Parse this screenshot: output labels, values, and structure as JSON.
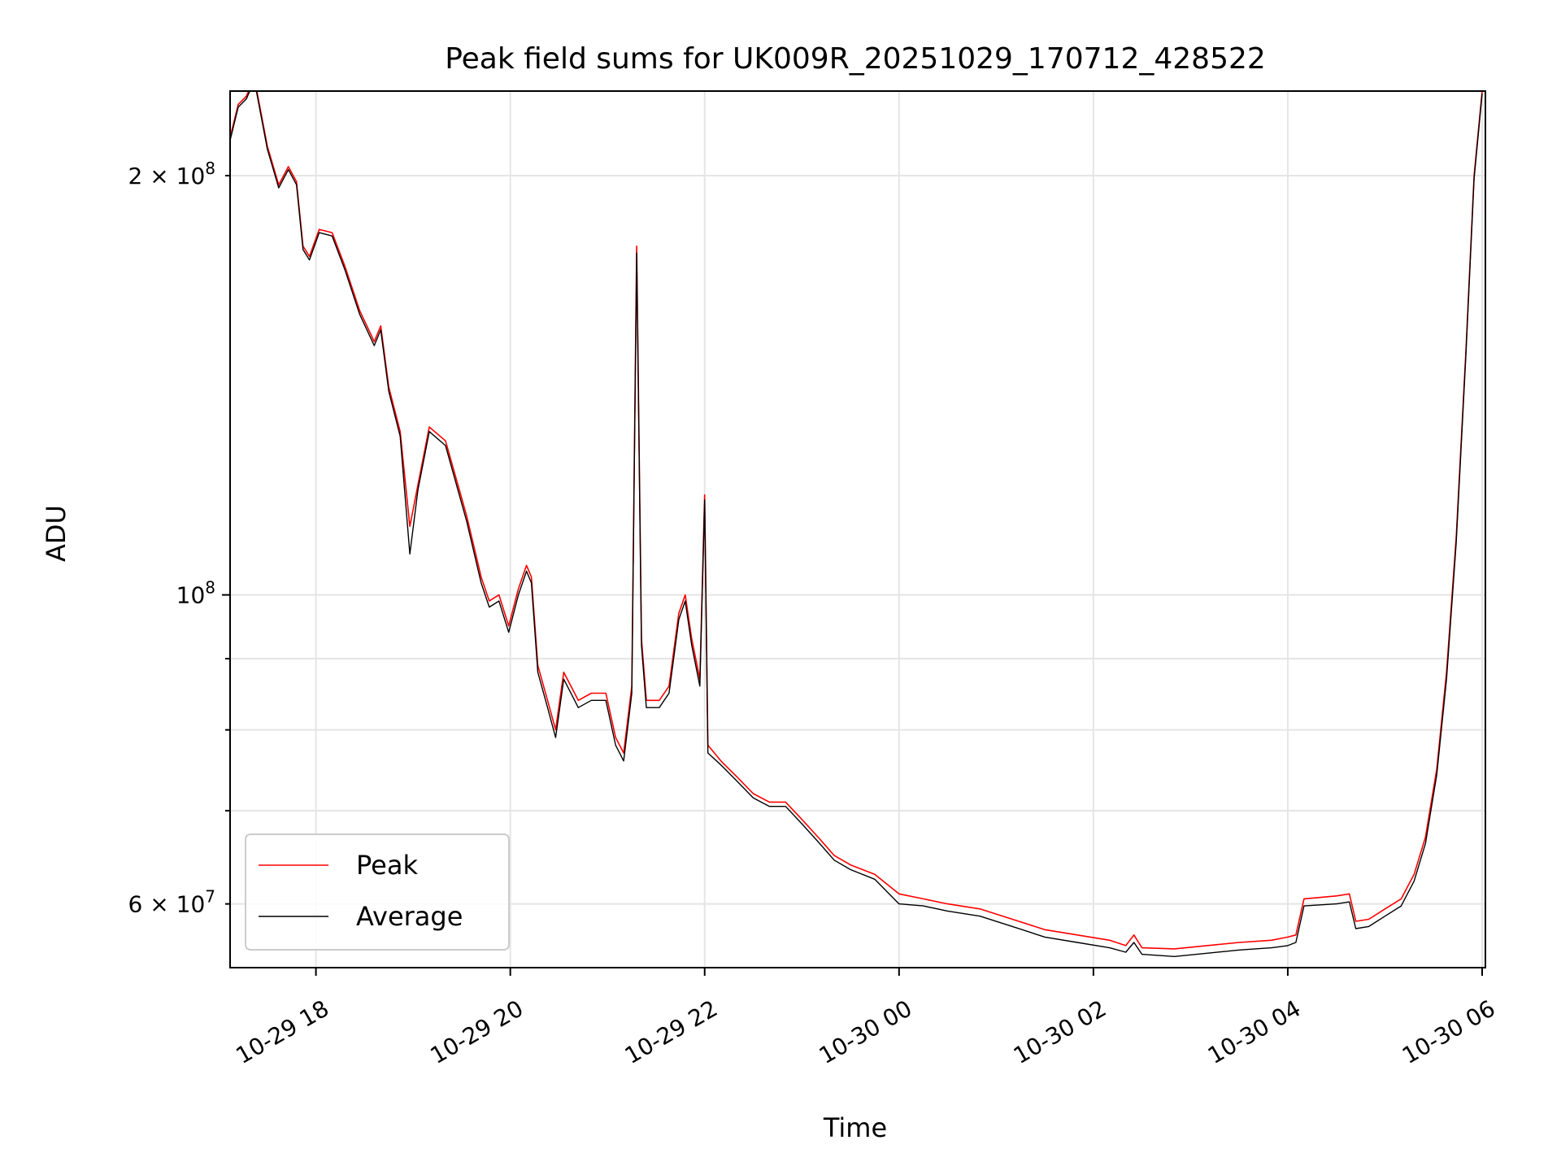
{
  "chart_data": {
    "type": "line",
    "title": "Peak field sums for UK009R_20251029_170712_428522",
    "xlabel": "Time",
    "ylabel": "ADU",
    "y_scale": "log",
    "grid": true,
    "legend_position": "lower-left",
    "xlim": [
      "2025-10-29T17:07",
      "2025-10-30T06:02"
    ],
    "ylim": [
      54000000,
      230000000
    ],
    "x_ticks": [
      {
        "value": "2025-10-29T18:00",
        "label": "10-29 18"
      },
      {
        "value": "2025-10-29T20:00",
        "label": "10-29 20"
      },
      {
        "value": "2025-10-29T22:00",
        "label": "10-29 22"
      },
      {
        "value": "2025-10-30T00:00",
        "label": "10-30 00"
      },
      {
        "value": "2025-10-30T02:00",
        "label": "10-30 02"
      },
      {
        "value": "2025-10-30T04:00",
        "label": "10-30 04"
      },
      {
        "value": "2025-10-30T06:00",
        "label": "10-30 06"
      }
    ],
    "y_major_ticks": [
      {
        "value": 100000000,
        "label": "10",
        "exp": "8"
      }
    ],
    "y_minor_ticks": [
      {
        "value": 60000000,
        "label": "6 × 10",
        "exp": "7"
      },
      {
        "value": 70000000,
        "label": "",
        "exp": ""
      },
      {
        "value": 80000000,
        "label": "",
        "exp": ""
      },
      {
        "value": 90000000,
        "label": "",
        "exp": ""
      },
      {
        "value": 200000000,
        "label": "2 × 10",
        "exp": "8"
      }
    ],
    "series": [
      {
        "name": "Peak",
        "color": "#ff0000",
        "points": [
          [
            "2025-10-29T17:07",
            213000000
          ],
          [
            "2025-10-29T17:12",
            225000000
          ],
          [
            "2025-10-29T17:17",
            228000000
          ],
          [
            "2025-10-29T17:22",
            235000000
          ],
          [
            "2025-10-29T17:30",
            210000000
          ],
          [
            "2025-10-29T17:37",
            197000000
          ],
          [
            "2025-10-29T17:43",
            203000000
          ],
          [
            "2025-10-29T17:48",
            198000000
          ],
          [
            "2025-10-29T17:52",
            178000000
          ],
          [
            "2025-10-29T17:56",
            175000000
          ],
          [
            "2025-10-29T18:02",
            183000000
          ],
          [
            "2025-10-29T18:10",
            182000000
          ],
          [
            "2025-10-29T18:18",
            172000000
          ],
          [
            "2025-10-29T18:27",
            160000000
          ],
          [
            "2025-10-29T18:36",
            152000000
          ],
          [
            "2025-10-29T18:40",
            156000000
          ],
          [
            "2025-10-29T18:45",
            141000000
          ],
          [
            "2025-10-29T18:52",
            131000000
          ],
          [
            "2025-10-29T18:58",
            112000000
          ],
          [
            "2025-10-29T19:03",
            120000000
          ],
          [
            "2025-10-29T19:10",
            132000000
          ],
          [
            "2025-10-29T19:20",
            129000000
          ],
          [
            "2025-10-29T19:33",
            114000000
          ],
          [
            "2025-10-29T19:42",
            103000000
          ],
          [
            "2025-10-29T19:47",
            99000000
          ],
          [
            "2025-10-29T19:53",
            100000000
          ],
          [
            "2025-10-29T19:59",
            95000000
          ],
          [
            "2025-10-29T20:05",
            101000000
          ],
          [
            "2025-10-29T20:10",
            105000000
          ],
          [
            "2025-10-29T20:13",
            103000000
          ],
          [
            "2025-10-29T20:17",
            89000000
          ],
          [
            "2025-10-29T20:23",
            84000000
          ],
          [
            "2025-10-29T20:28",
            80000000
          ],
          [
            "2025-10-29T20:33",
            88000000
          ],
          [
            "2025-10-29T20:42",
            84000000
          ],
          [
            "2025-10-29T20:50",
            85000000
          ],
          [
            "2025-10-29T20:59",
            85000000
          ],
          [
            "2025-10-29T21:05",
            79000000
          ],
          [
            "2025-10-29T21:10",
            77000000
          ],
          [
            "2025-10-29T21:15",
            86000000
          ],
          [
            "2025-10-29T21:18",
            178000000
          ],
          [
            "2025-10-29T21:21",
            93000000
          ],
          [
            "2025-10-29T21:24",
            84000000
          ],
          [
            "2025-10-29T21:32",
            84000000
          ],
          [
            "2025-10-29T21:38",
            86000000
          ],
          [
            "2025-10-29T21:44",
            97000000
          ],
          [
            "2025-10-29T21:48",
            100000000
          ],
          [
            "2025-10-29T21:52",
            93000000
          ],
          [
            "2025-10-29T21:57",
            87000000
          ],
          [
            "2025-10-29T22:00",
            118000000
          ],
          [
            "2025-10-29T22:02",
            78000000
          ],
          [
            "2025-10-29T22:10",
            76000000
          ],
          [
            "2025-10-29T22:20",
            74000000
          ],
          [
            "2025-10-29T22:30",
            72000000
          ],
          [
            "2025-10-29T22:40",
            71000000
          ],
          [
            "2025-10-29T22:50",
            71000000
          ],
          [
            "2025-10-29T23:00",
            69000000
          ],
          [
            "2025-10-29T23:10",
            67000000
          ],
          [
            "2025-10-29T23:20",
            65000000
          ],
          [
            "2025-10-29T23:30",
            64000000
          ],
          [
            "2025-10-29T23:45",
            63000000
          ],
          [
            "2025-10-30T00:00",
            61000000
          ],
          [
            "2025-10-30T00:15",
            60500000
          ],
          [
            "2025-10-30T00:30",
            60000000
          ],
          [
            "2025-10-30T00:50",
            59500000
          ],
          [
            "2025-10-30T01:10",
            58500000
          ],
          [
            "2025-10-30T01:30",
            57500000
          ],
          [
            "2025-10-30T01:50",
            57000000
          ],
          [
            "2025-10-30T02:10",
            56500000
          ],
          [
            "2025-10-30T02:20",
            56000000
          ],
          [
            "2025-10-30T02:25",
            57000000
          ],
          [
            "2025-10-30T02:30",
            55800000
          ],
          [
            "2025-10-30T02:50",
            55700000
          ],
          [
            "2025-10-30T03:10",
            56000000
          ],
          [
            "2025-10-30T03:30",
            56300000
          ],
          [
            "2025-10-30T03:50",
            56500000
          ],
          [
            "2025-10-30T04:00",
            56800000
          ],
          [
            "2025-10-30T04:05",
            57000000
          ],
          [
            "2025-10-30T04:10",
            60500000
          ],
          [
            "2025-10-30T04:30",
            60800000
          ],
          [
            "2025-10-30T04:38",
            61000000
          ],
          [
            "2025-10-30T04:42",
            58300000
          ],
          [
            "2025-10-30T04:50",
            58500000
          ],
          [
            "2025-10-30T05:00",
            59500000
          ],
          [
            "2025-10-30T05:10",
            60500000
          ],
          [
            "2025-10-30T05:18",
            63000000
          ],
          [
            "2025-10-30T05:25",
            67000000
          ],
          [
            "2025-10-30T05:32",
            75000000
          ],
          [
            "2025-10-30T05:38",
            88000000
          ],
          [
            "2025-10-30T05:44",
            110000000
          ],
          [
            "2025-10-30T05:50",
            150000000
          ],
          [
            "2025-10-30T05:55",
            200000000
          ],
          [
            "2025-10-30T06:00",
            230000000
          ]
        ]
      },
      {
        "name": "Average",
        "color": "#000000",
        "points": [
          [
            "2025-10-29T17:07",
            212000000
          ],
          [
            "2025-10-29T17:12",
            224000000
          ],
          [
            "2025-10-29T17:17",
            227000000
          ],
          [
            "2025-10-29T17:22",
            234000000
          ],
          [
            "2025-10-29T17:30",
            209000000
          ],
          [
            "2025-10-29T17:37",
            196000000
          ],
          [
            "2025-10-29T17:43",
            202000000
          ],
          [
            "2025-10-29T17:48",
            197000000
          ],
          [
            "2025-10-29T17:52",
            177000000
          ],
          [
            "2025-10-29T17:56",
            174000000
          ],
          [
            "2025-10-29T18:02",
            182000000
          ],
          [
            "2025-10-29T18:10",
            181000000
          ],
          [
            "2025-10-29T18:18",
            171000000
          ],
          [
            "2025-10-29T18:27",
            159000000
          ],
          [
            "2025-10-29T18:36",
            151000000
          ],
          [
            "2025-10-29T18:40",
            155000000
          ],
          [
            "2025-10-29T18:45",
            140000000
          ],
          [
            "2025-10-29T18:52",
            130000000
          ],
          [
            "2025-10-29T18:58",
            107000000
          ],
          [
            "2025-10-29T19:03",
            119000000
          ],
          [
            "2025-10-29T19:10",
            131000000
          ],
          [
            "2025-10-29T19:20",
            128000000
          ],
          [
            "2025-10-29T19:33",
            113000000
          ],
          [
            "2025-10-29T19:42",
            102000000
          ],
          [
            "2025-10-29T19:47",
            98000000
          ],
          [
            "2025-10-29T19:53",
            99000000
          ],
          [
            "2025-10-29T19:59",
            94000000
          ],
          [
            "2025-10-29T20:05",
            100000000
          ],
          [
            "2025-10-29T20:10",
            104000000
          ],
          [
            "2025-10-29T20:13",
            102000000
          ],
          [
            "2025-10-29T20:17",
            88000000
          ],
          [
            "2025-10-29T20:23",
            83000000
          ],
          [
            "2025-10-29T20:28",
            79000000
          ],
          [
            "2025-10-29T20:33",
            87000000
          ],
          [
            "2025-10-29T20:42",
            83000000
          ],
          [
            "2025-10-29T20:50",
            84000000
          ],
          [
            "2025-10-29T20:59",
            84000000
          ],
          [
            "2025-10-29T21:05",
            78000000
          ],
          [
            "2025-10-29T21:10",
            76000000
          ],
          [
            "2025-10-29T21:15",
            85000000
          ],
          [
            "2025-10-29T21:18",
            176000000
          ],
          [
            "2025-10-29T21:21",
            92000000
          ],
          [
            "2025-10-29T21:24",
            83000000
          ],
          [
            "2025-10-29T21:32",
            83000000
          ],
          [
            "2025-10-29T21:38",
            85000000
          ],
          [
            "2025-10-29T21:44",
            96000000
          ],
          [
            "2025-10-29T21:48",
            99000000
          ],
          [
            "2025-10-29T21:52",
            92000000
          ],
          [
            "2025-10-29T21:57",
            86000000
          ],
          [
            "2025-10-29T22:00",
            117000000
          ],
          [
            "2025-10-29T22:02",
            77000000
          ],
          [
            "2025-10-29T22:10",
            75500000
          ],
          [
            "2025-10-29T22:20",
            73500000
          ],
          [
            "2025-10-29T22:30",
            71500000
          ],
          [
            "2025-10-29T22:40",
            70500000
          ],
          [
            "2025-10-29T22:50",
            70500000
          ],
          [
            "2025-10-29T23:00",
            68500000
          ],
          [
            "2025-10-29T23:10",
            66500000
          ],
          [
            "2025-10-29T23:20",
            64500000
          ],
          [
            "2025-10-29T23:30",
            63500000
          ],
          [
            "2025-10-29T23:45",
            62500000
          ],
          [
            "2025-10-30T00:00",
            60000000
          ],
          [
            "2025-10-30T00:15",
            59800000
          ],
          [
            "2025-10-30T00:30",
            59300000
          ],
          [
            "2025-10-30T00:50",
            58800000
          ],
          [
            "2025-10-30T01:10",
            57800000
          ],
          [
            "2025-10-30T01:30",
            56800000
          ],
          [
            "2025-10-30T01:50",
            56300000
          ],
          [
            "2025-10-30T02:10",
            55800000
          ],
          [
            "2025-10-30T02:20",
            55400000
          ],
          [
            "2025-10-30T02:25",
            56300000
          ],
          [
            "2025-10-30T02:30",
            55200000
          ],
          [
            "2025-10-30T02:50",
            55000000
          ],
          [
            "2025-10-30T03:10",
            55300000
          ],
          [
            "2025-10-30T03:30",
            55600000
          ],
          [
            "2025-10-30T03:50",
            55800000
          ],
          [
            "2025-10-30T04:00",
            56000000
          ],
          [
            "2025-10-30T04:05",
            56300000
          ],
          [
            "2025-10-30T04:10",
            59800000
          ],
          [
            "2025-10-30T04:30",
            60000000
          ],
          [
            "2025-10-30T04:38",
            60200000
          ],
          [
            "2025-10-30T04:42",
            57600000
          ],
          [
            "2025-10-30T04:50",
            57800000
          ],
          [
            "2025-10-30T05:00",
            58800000
          ],
          [
            "2025-10-30T05:10",
            59800000
          ],
          [
            "2025-10-30T05:18",
            62300000
          ],
          [
            "2025-10-30T05:25",
            66300000
          ],
          [
            "2025-10-30T05:32",
            74300000
          ],
          [
            "2025-10-30T05:38",
            87000000
          ],
          [
            "2025-10-30T05:44",
            109000000
          ],
          [
            "2025-10-30T05:50",
            149000000
          ],
          [
            "2025-10-30T05:55",
            199000000
          ],
          [
            "2025-10-30T06:00",
            229000000
          ]
        ]
      }
    ]
  }
}
